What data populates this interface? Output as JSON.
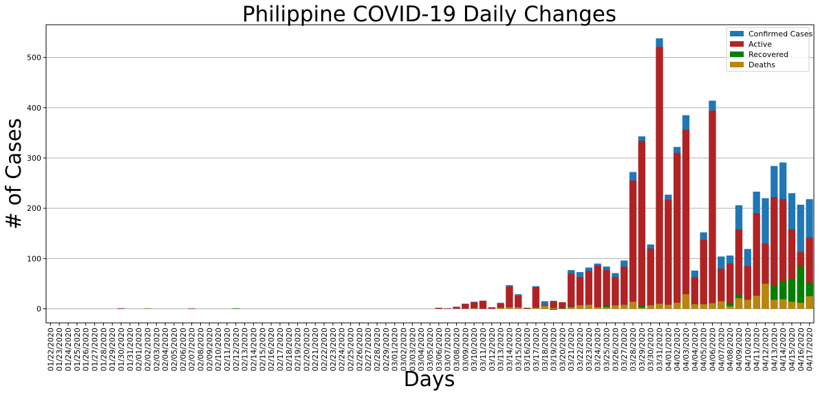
{
  "chart_data": {
    "type": "bar",
    "title": "Philippine COVID-19 Daily Changes",
    "xlabel": "Days",
    "ylabel": "# of Cases",
    "ylim": [
      -28,
      565
    ],
    "yticks": [
      0,
      100,
      200,
      300,
      400,
      500
    ],
    "grid": "horizontal",
    "legend_position": "top-right",
    "categories": [
      "01/22/2020",
      "01/23/2020",
      "01/24/2020",
      "01/25/2020",
      "01/26/2020",
      "01/27/2020",
      "01/28/2020",
      "01/29/2020",
      "01/30/2020",
      "01/31/2020",
      "02/01/2020",
      "02/02/2020",
      "02/03/2020",
      "02/04/2020",
      "02/05/2020",
      "02/06/2020",
      "02/07/2020",
      "02/08/2020",
      "02/09/2020",
      "02/10/2020",
      "02/11/2020",
      "02/12/2020",
      "02/13/2020",
      "02/14/2020",
      "02/15/2020",
      "02/16/2020",
      "02/17/2020",
      "02/18/2020",
      "02/19/2020",
      "02/20/2020",
      "02/21/2020",
      "02/22/2020",
      "02/23/2020",
      "02/24/2020",
      "02/25/2020",
      "02/26/2020",
      "02/27/2020",
      "02/28/2020",
      "02/29/2020",
      "03/01/2020",
      "03/02/2020",
      "03/03/2020",
      "03/04/2020",
      "03/05/2020",
      "03/06/2020",
      "03/07/2020",
      "03/08/2020",
      "03/09/2020",
      "03/10/2020",
      "03/11/2020",
      "03/12/2020",
      "03/13/2020",
      "03/14/2020",
      "03/15/2020",
      "03/16/2020",
      "03/17/2020",
      "03/18/2020",
      "03/19/2020",
      "03/20/2020",
      "03/21/2020",
      "03/22/2020",
      "03/23/2020",
      "03/24/2020",
      "03/25/2020",
      "03/26/2020",
      "03/27/2020",
      "03/28/2020",
      "03/29/2020",
      "03/30/2020",
      "03/31/2020",
      "04/01/2020",
      "04/02/2020",
      "04/03/2020",
      "04/04/2020",
      "04/05/2020",
      "04/06/2020",
      "04/07/2020",
      "04/08/2020",
      "04/09/2020",
      "04/10/2020",
      "04/11/2020",
      "04/12/2020",
      "04/13/2020",
      "04/14/2020",
      "04/15/2020",
      "04/16/2020",
      "04/17/2020"
    ],
    "series": [
      {
        "name": "Confirmed Cases",
        "color": "#1f77b4",
        "values": [
          0,
          0,
          0,
          0,
          0,
          0,
          0,
          0,
          1,
          0,
          0,
          1,
          0,
          0,
          0,
          0,
          0,
          0,
          0,
          0,
          0,
          0,
          0,
          0,
          0,
          0,
          0,
          0,
          0,
          0,
          0,
          0,
          0,
          0,
          0,
          0,
          0,
          0,
          0,
          0,
          0,
          0,
          0,
          0,
          2,
          1,
          4,
          10,
          14,
          16,
          3,
          12,
          47,
          29,
          2,
          45,
          15,
          16,
          13,
          77,
          73,
          82,
          90,
          84,
          71,
          96,
          272,
          343,
          128,
          538,
          227,
          322,
          385,
          76,
          152,
          414,
          104,
          106,
          206,
          119,
          233,
          220,
          284,
          291,
          230,
          207,
          218
        ]
      },
      {
        "name": "Active",
        "color": "#b22222",
        "values": [
          0,
          0,
          0,
          0,
          0,
          0,
          0,
          0,
          1,
          0,
          0,
          0,
          0,
          0,
          0,
          0,
          1,
          0,
          0,
          0,
          0,
          0,
          0,
          0,
          0,
          0,
          0,
          0,
          0,
          0,
          0,
          0,
          0,
          0,
          0,
          0,
          0,
          0,
          0,
          0,
          0,
          0,
          0,
          0,
          2,
          1,
          4,
          10,
          13,
          16,
          3,
          10,
          44,
          26,
          2,
          43,
          8,
          14,
          13,
          70,
          63,
          75,
          86,
          77,
          63,
          84,
          255,
          334,
          120,
          521,
          217,
          310,
          356,
          63,
          137,
          394,
          80,
          90,
          158,
          85,
          190,
          130,
          222,
          218,
          158,
          113,
          142
        ]
      },
      {
        "name": "Recovered",
        "color": "#008000",
        "values": [
          0,
          0,
          0,
          0,
          0,
          0,
          0,
          0,
          0,
          0,
          0,
          0,
          0,
          0,
          0,
          0,
          0,
          0,
          0,
          0,
          0,
          1,
          0,
          0,
          0,
          0,
          0,
          0,
          0,
          0,
          0,
          0,
          0,
          0,
          0,
          0,
          0,
          0,
          0,
          0,
          0,
          0,
          0,
          0,
          0,
          0,
          0,
          0,
          0,
          0,
          0,
          0,
          0,
          0,
          0,
          3,
          1,
          -2,
          1,
          4,
          0,
          0,
          0,
          6,
          0,
          0,
          0,
          6,
          1,
          0,
          0,
          0,
          0,
          0,
          0,
          0,
          0,
          12,
          28,
          0,
          0,
          5,
          46,
          55,
          60,
          84,
          52
        ]
      },
      {
        "name": "Deaths",
        "color": "#b8860b",
        "values": [
          0,
          0,
          0,
          0,
          0,
          0,
          0,
          0,
          0,
          0,
          0,
          1,
          0,
          0,
          0,
          0,
          0,
          0,
          0,
          0,
          0,
          0,
          0,
          0,
          0,
          0,
          0,
          0,
          0,
          0,
          0,
          0,
          0,
          0,
          0,
          0,
          0,
          0,
          0,
          0,
          0,
          0,
          0,
          0,
          0,
          0,
          0,
          0,
          1,
          0,
          0,
          2,
          3,
          3,
          0,
          2,
          6,
          2,
          0,
          3,
          7,
          8,
          3,
          3,
          7,
          8,
          14,
          2,
          7,
          10,
          8,
          12,
          29,
          9,
          9,
          11,
          15,
          5,
          21,
          18,
          26,
          50,
          18,
          19,
          14,
          12,
          25
        ]
      }
    ]
  }
}
